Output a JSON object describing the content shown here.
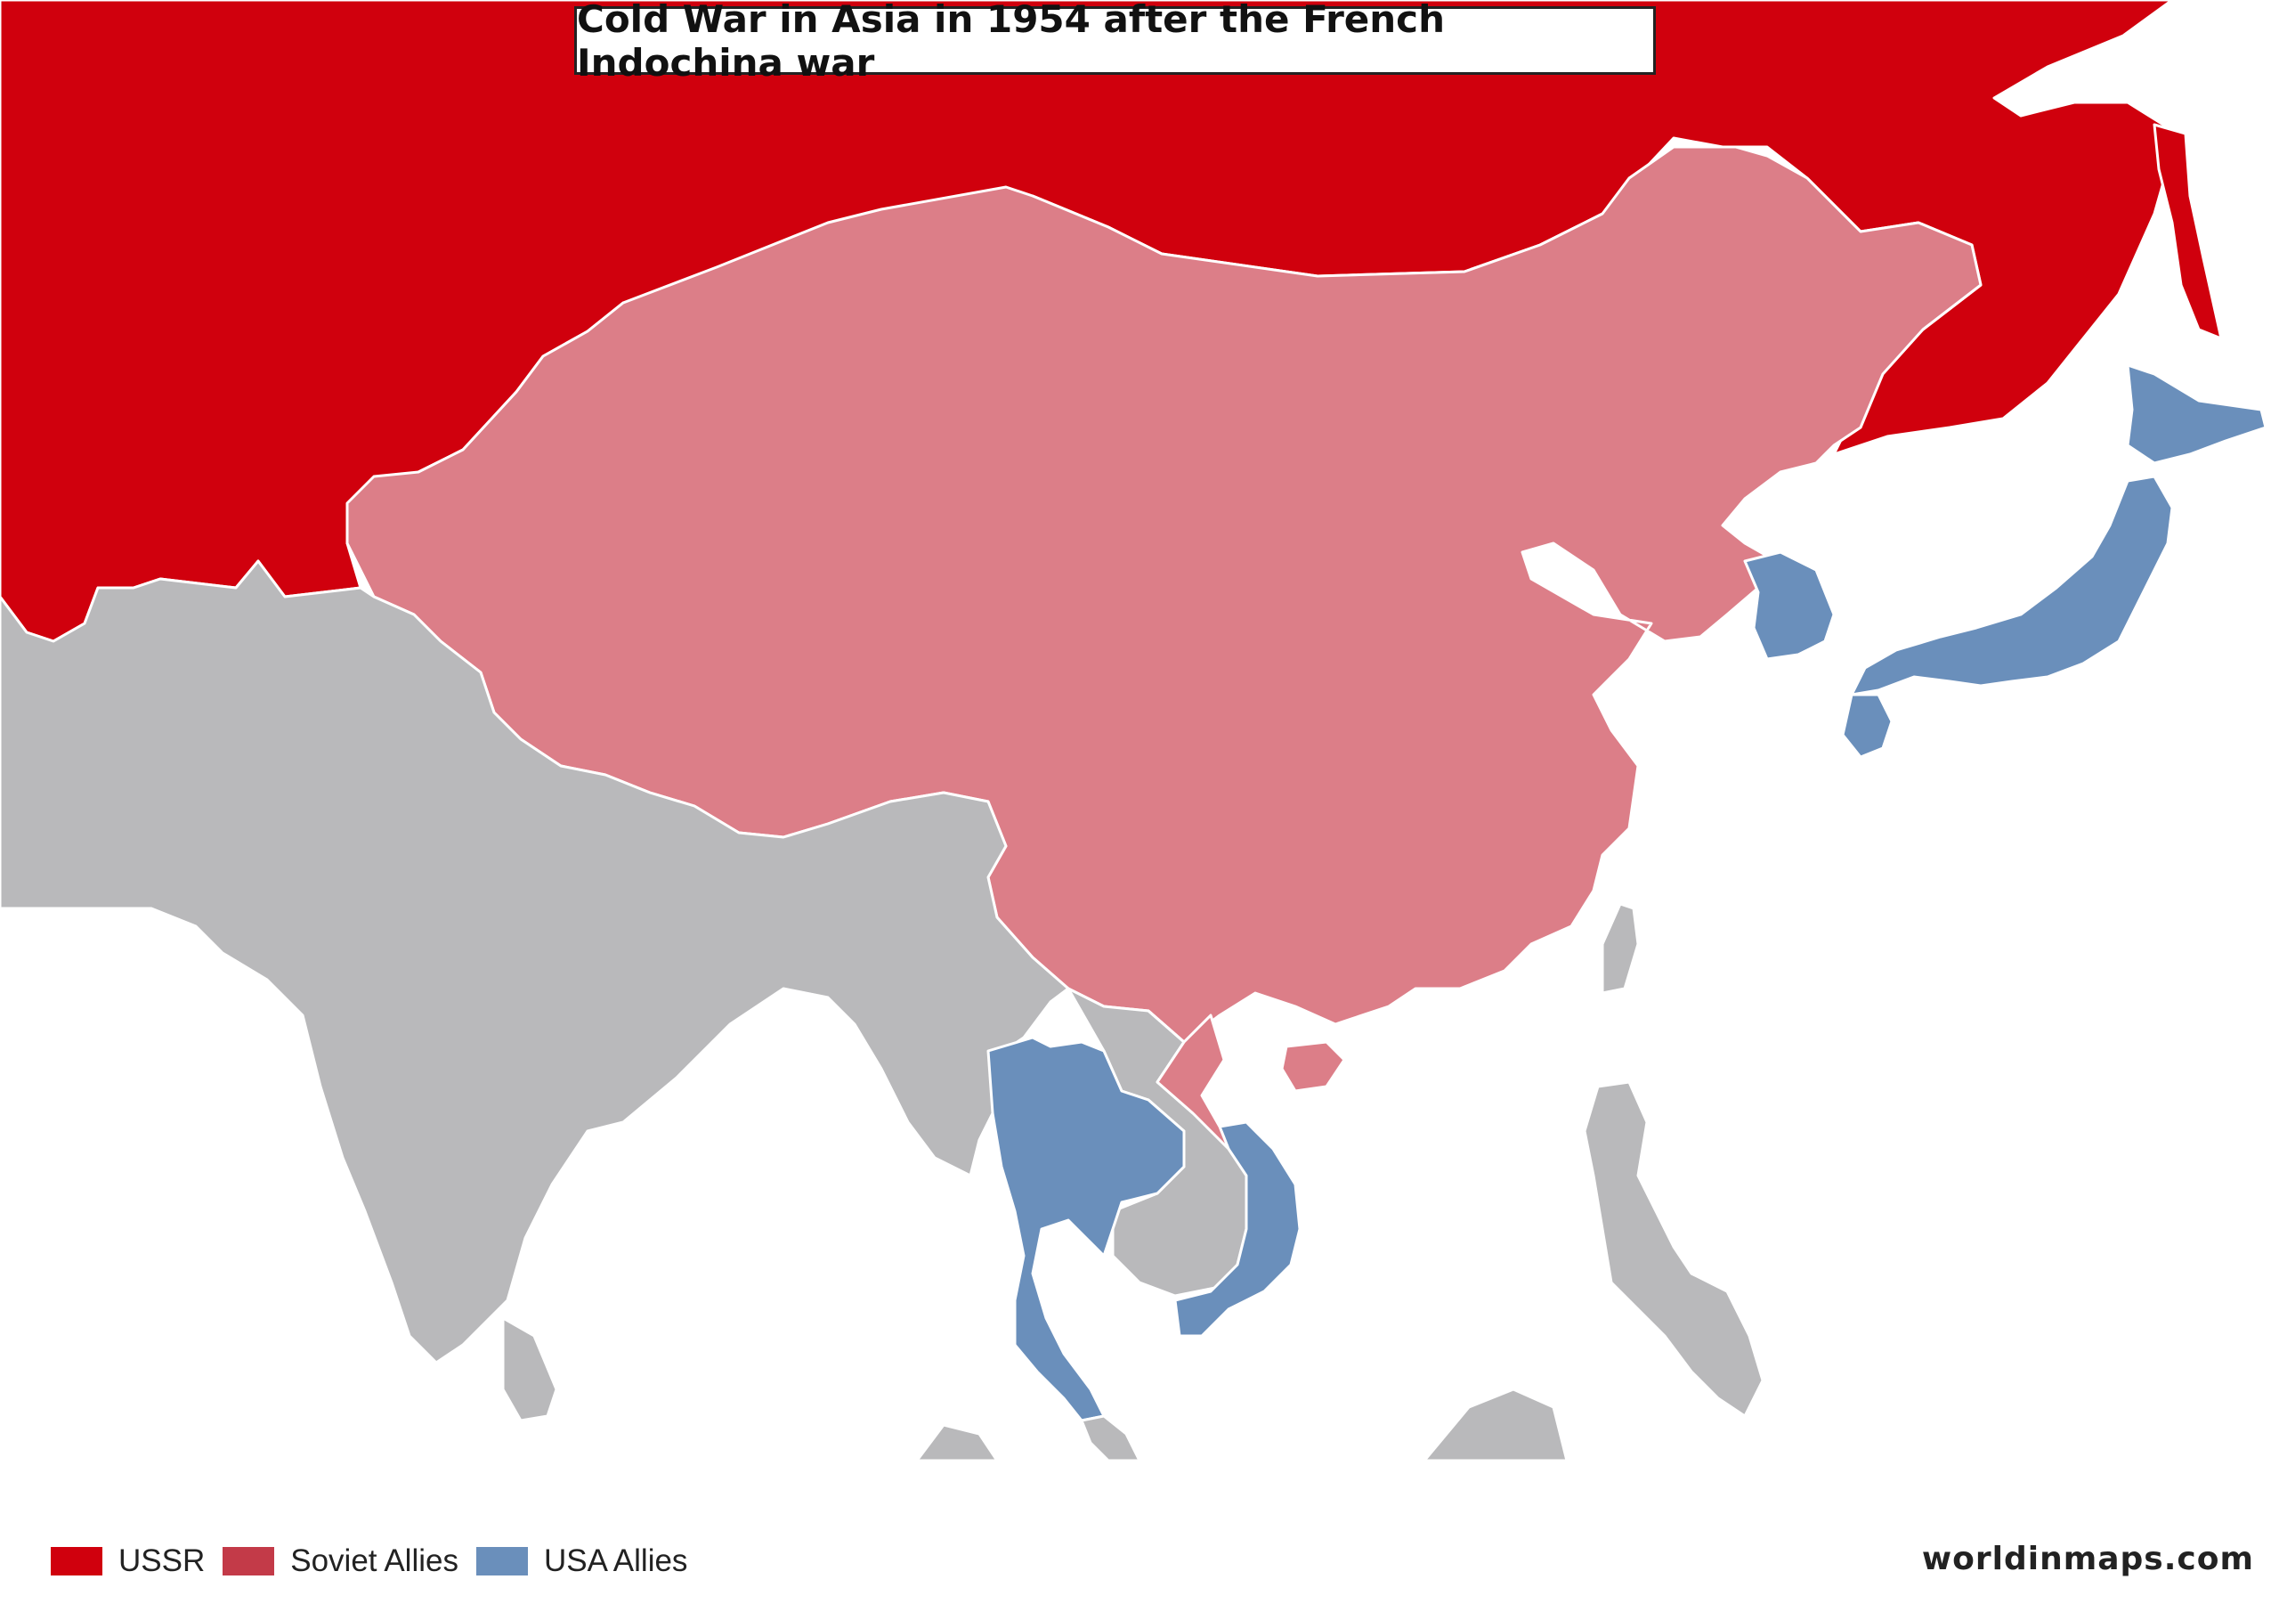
{
  "title": "Cold War in Asia in 1954 after the French Indochina war",
  "legend": [
    {
      "label": "USSR",
      "color": "#d0000d"
    },
    {
      "label": "Soviet Allies",
      "color": "#c33a48"
    },
    {
      "label": "USA Allies",
      "color": "#6a8fbb"
    }
  ],
  "credit": "worldinmaps.com",
  "region_colors": {
    "ussr": "#d0000d",
    "soviet_allies_map": "#dc7e88",
    "usa_allies": "#6a8fbb",
    "neutral": "#b9b9bb",
    "border": "#ffffff"
  }
}
